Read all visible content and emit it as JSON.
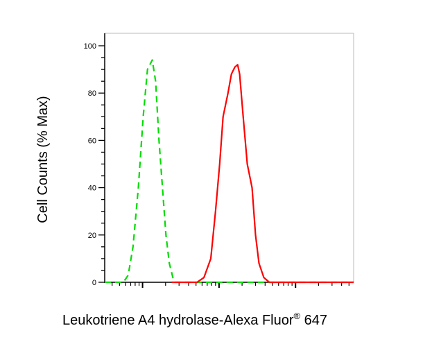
{
  "chart_data": {
    "type": "line",
    "title": "",
    "xlabel": "Leukotriene A4 hydrolase-Alexa Fluor",
    "xlabel_superscript": "®",
    "xlabel_suffix": " 647",
    "ylabel": "Cell Counts (% Max)",
    "xscale": "log",
    "xlim": [
      3.2,
      5750
    ],
    "x_major_ticks": [
      10,
      100,
      1000
    ],
    "x_tick_labels_shown": false,
    "ylim": [
      0,
      100
    ],
    "y_ticks": [
      0,
      20,
      40,
      60,
      80,
      100
    ],
    "y_tick_labels": [
      "0",
      "20",
      "40",
      "60",
      "80",
      "100"
    ],
    "y_minor_step": 5,
    "grid": false,
    "legend": "none",
    "series": [
      {
        "style": "dashed",
        "color": "#00dd00",
        "x": [
          3.2,
          5.6,
          6.5,
          7.5,
          8.8,
          10.2,
          11.6,
          13.4,
          14.8,
          16.4,
          18.2,
          20.2,
          22.4,
          24.9,
          26.5,
          5750
        ],
        "y": [
          0,
          0,
          3,
          15,
          40,
          70,
          90,
          94,
          85,
          60,
          40,
          20,
          8,
          2,
          0,
          0
        ]
      },
      {
        "style": "solid",
        "color": "#ff0000",
        "x": [
          24,
          51.5,
          63.4,
          78,
          90,
          102,
          113,
          131,
          145,
          161,
          175,
          186,
          207,
          234,
          270,
          300,
          333,
          385,
          455,
          5750
        ],
        "y": [
          0,
          0,
          2,
          10,
          30,
          50,
          70,
          80,
          88,
          91,
          92,
          88,
          70,
          50,
          40,
          20,
          8,
          2,
          0,
          0
        ]
      }
    ]
  }
}
